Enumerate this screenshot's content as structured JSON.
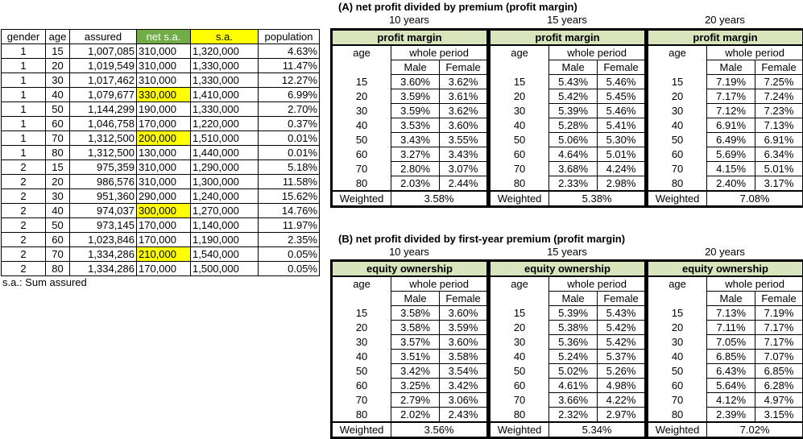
{
  "left_table": {
    "headers": [
      "gender",
      "age",
      "assured",
      "net s.a.",
      "s.a.",
      "population"
    ],
    "rows": [
      [
        "1",
        "15",
        "1,007,085",
        "310,000",
        "1,320,000",
        "4.63%"
      ],
      [
        "1",
        "20",
        "1,019,549",
        "310,000",
        "1,330,000",
        "11.47%"
      ],
      [
        "1",
        "30",
        "1,017,462",
        "310,000",
        "1,330,000",
        "12.27%"
      ],
      [
        "1",
        "40",
        "1,079,677",
        "330,000",
        "1,410,000",
        "6.99%"
      ],
      [
        "1",
        "50",
        "1,144,299",
        "190,000",
        "1,330,000",
        "2.70%"
      ],
      [
        "1",
        "60",
        "1,046,758",
        "170,000",
        "1,220,000",
        "0.37%"
      ],
      [
        "1",
        "70",
        "1,312,500",
        "200,000",
        "1,510,000",
        "0.01%"
      ],
      [
        "1",
        "80",
        "1,312,500",
        "130,000",
        "1,440,000",
        "0.01%"
      ],
      [
        "2",
        "15",
        "975,359",
        "310,000",
        "1,290,000",
        "5.18%"
      ],
      [
        "2",
        "20",
        "986,576",
        "310,000",
        "1,300,000",
        "11.58%"
      ],
      [
        "2",
        "30",
        "951,360",
        "290,000",
        "1,240,000",
        "15.62%"
      ],
      [
        "2",
        "40",
        "974,037",
        "300,000",
        "1,270,000",
        "14.76%"
      ],
      [
        "2",
        "50",
        "973,145",
        "170,000",
        "1,140,000",
        "11.97%"
      ],
      [
        "2",
        "60",
        "1,023,846",
        "170,000",
        "1,190,000",
        "2.35%"
      ],
      [
        "2",
        "70",
        "1,334,286",
        "210,000",
        "1,540,000",
        "0.05%"
      ],
      [
        "2",
        "80",
        "1,334,286",
        "170,000",
        "1,500,000",
        "0.05%"
      ]
    ],
    "highlighted_net_sa_rows": [
      3,
      6,
      11,
      14
    ],
    "note": "s.a.: Sum assured"
  },
  "section_a": {
    "title": "(A)  net profit divided by premium (profit margin)",
    "panels": [
      {
        "years": "10 years",
        "header": "profit margin",
        "age_label": "age",
        "period": "whole period",
        "male": "Male",
        "female": "Female",
        "rows": [
          [
            "15",
            "3.60%",
            "3.62%"
          ],
          [
            "20",
            "3.59%",
            "3.61%"
          ],
          [
            "30",
            "3.59%",
            "3.62%"
          ],
          [
            "40",
            "3.53%",
            "3.60%"
          ],
          [
            "50",
            "3.43%",
            "3.55%"
          ],
          [
            "60",
            "3.27%",
            "3.43%"
          ],
          [
            "70",
            "2.80%",
            "3.07%"
          ],
          [
            "80",
            "2.03%",
            "2.44%"
          ]
        ],
        "weighted_label": "Weighted",
        "weighted": "3.58%"
      },
      {
        "years": "15 years",
        "header": "profit margin",
        "age_label": "age",
        "period": "whole period",
        "male": "Male",
        "female": "Female",
        "rows": [
          [
            "15",
            "5.43%",
            "5.46%"
          ],
          [
            "20",
            "5.42%",
            "5.45%"
          ],
          [
            "30",
            "5.39%",
            "5.46%"
          ],
          [
            "40",
            "5.28%",
            "5.41%"
          ],
          [
            "50",
            "5.06%",
            "5.30%"
          ],
          [
            "60",
            "4.64%",
            "5.01%"
          ],
          [
            "70",
            "3.68%",
            "4.24%"
          ],
          [
            "80",
            "2.33%",
            "2.98%"
          ]
        ],
        "weighted_label": "Weighted",
        "weighted": "5.38%"
      },
      {
        "years": "20 years",
        "header": "profit margin",
        "age_label": "age",
        "period": "whole period",
        "male": "Male",
        "female": "Female",
        "rows": [
          [
            "15",
            "7.19%",
            "7.25%"
          ],
          [
            "20",
            "7.17%",
            "7.24%"
          ],
          [
            "30",
            "7.12%",
            "7.23%"
          ],
          [
            "40",
            "6.91%",
            "7.13%"
          ],
          [
            "50",
            "6.49%",
            "6.91%"
          ],
          [
            "60",
            "5.69%",
            "6.34%"
          ],
          [
            "70",
            "4.15%",
            "5.01%"
          ],
          [
            "80",
            "2.40%",
            "3.17%"
          ]
        ],
        "weighted_label": "Weighted",
        "weighted": "7.08%"
      }
    ]
  },
  "section_b": {
    "title": "(B)  net profit divided by first-year premium (profit margin)",
    "panels": [
      {
        "years": "10 years",
        "header": "equity ownership",
        "age_label": "age",
        "period": "whole period",
        "male": "Male",
        "female": "Female",
        "rows": [
          [
            "15",
            "3.58%",
            "3.60%"
          ],
          [
            "20",
            "3.58%",
            "3.59%"
          ],
          [
            "30",
            "3.57%",
            "3.60%"
          ],
          [
            "40",
            "3.51%",
            "3.58%"
          ],
          [
            "50",
            "3.42%",
            "3.54%"
          ],
          [
            "60",
            "3.25%",
            "3.42%"
          ],
          [
            "70",
            "2.79%",
            "3.06%"
          ],
          [
            "80",
            "2.02%",
            "2.43%"
          ]
        ],
        "weighted_label": "Weighted",
        "weighted": "3.56%"
      },
      {
        "years": "15 years",
        "header": "equity ownership",
        "age_label": "age",
        "period": "whole period",
        "male": "Male",
        "female": "Female",
        "rows": [
          [
            "15",
            "5.39%",
            "5.43%"
          ],
          [
            "20",
            "5.38%",
            "5.42%"
          ],
          [
            "30",
            "5.36%",
            "5.42%"
          ],
          [
            "40",
            "5.24%",
            "5.37%"
          ],
          [
            "50",
            "5.02%",
            "5.26%"
          ],
          [
            "60",
            "4.61%",
            "4.98%"
          ],
          [
            "70",
            "3.66%",
            "4.22%"
          ],
          [
            "80",
            "2.32%",
            "2.97%"
          ]
        ],
        "weighted_label": "Weighted",
        "weighted": "5.34%"
      },
      {
        "years": "20 years",
        "header": "equity ownership",
        "age_label": "age",
        "period": "whole period",
        "male": "Male",
        "female": "Female",
        "rows": [
          [
            "15",
            "7.13%",
            "7.19%"
          ],
          [
            "20",
            "7.11%",
            "7.17%"
          ],
          [
            "30",
            "7.05%",
            "7.17%"
          ],
          [
            "40",
            "6.85%",
            "7.07%"
          ],
          [
            "50",
            "6.43%",
            "6.85%"
          ],
          [
            "60",
            "5.64%",
            "6.28%"
          ],
          [
            "70",
            "4.12%",
            "4.97%"
          ],
          [
            "80",
            "2.39%",
            "3.15%"
          ]
        ],
        "weighted_label": "Weighted",
        "weighted": "7.02%"
      }
    ]
  },
  "colors": {
    "header_green": "#70ad47",
    "highlight_yellow": "#ffff00",
    "panel_header": "#d8e4bc"
  }
}
